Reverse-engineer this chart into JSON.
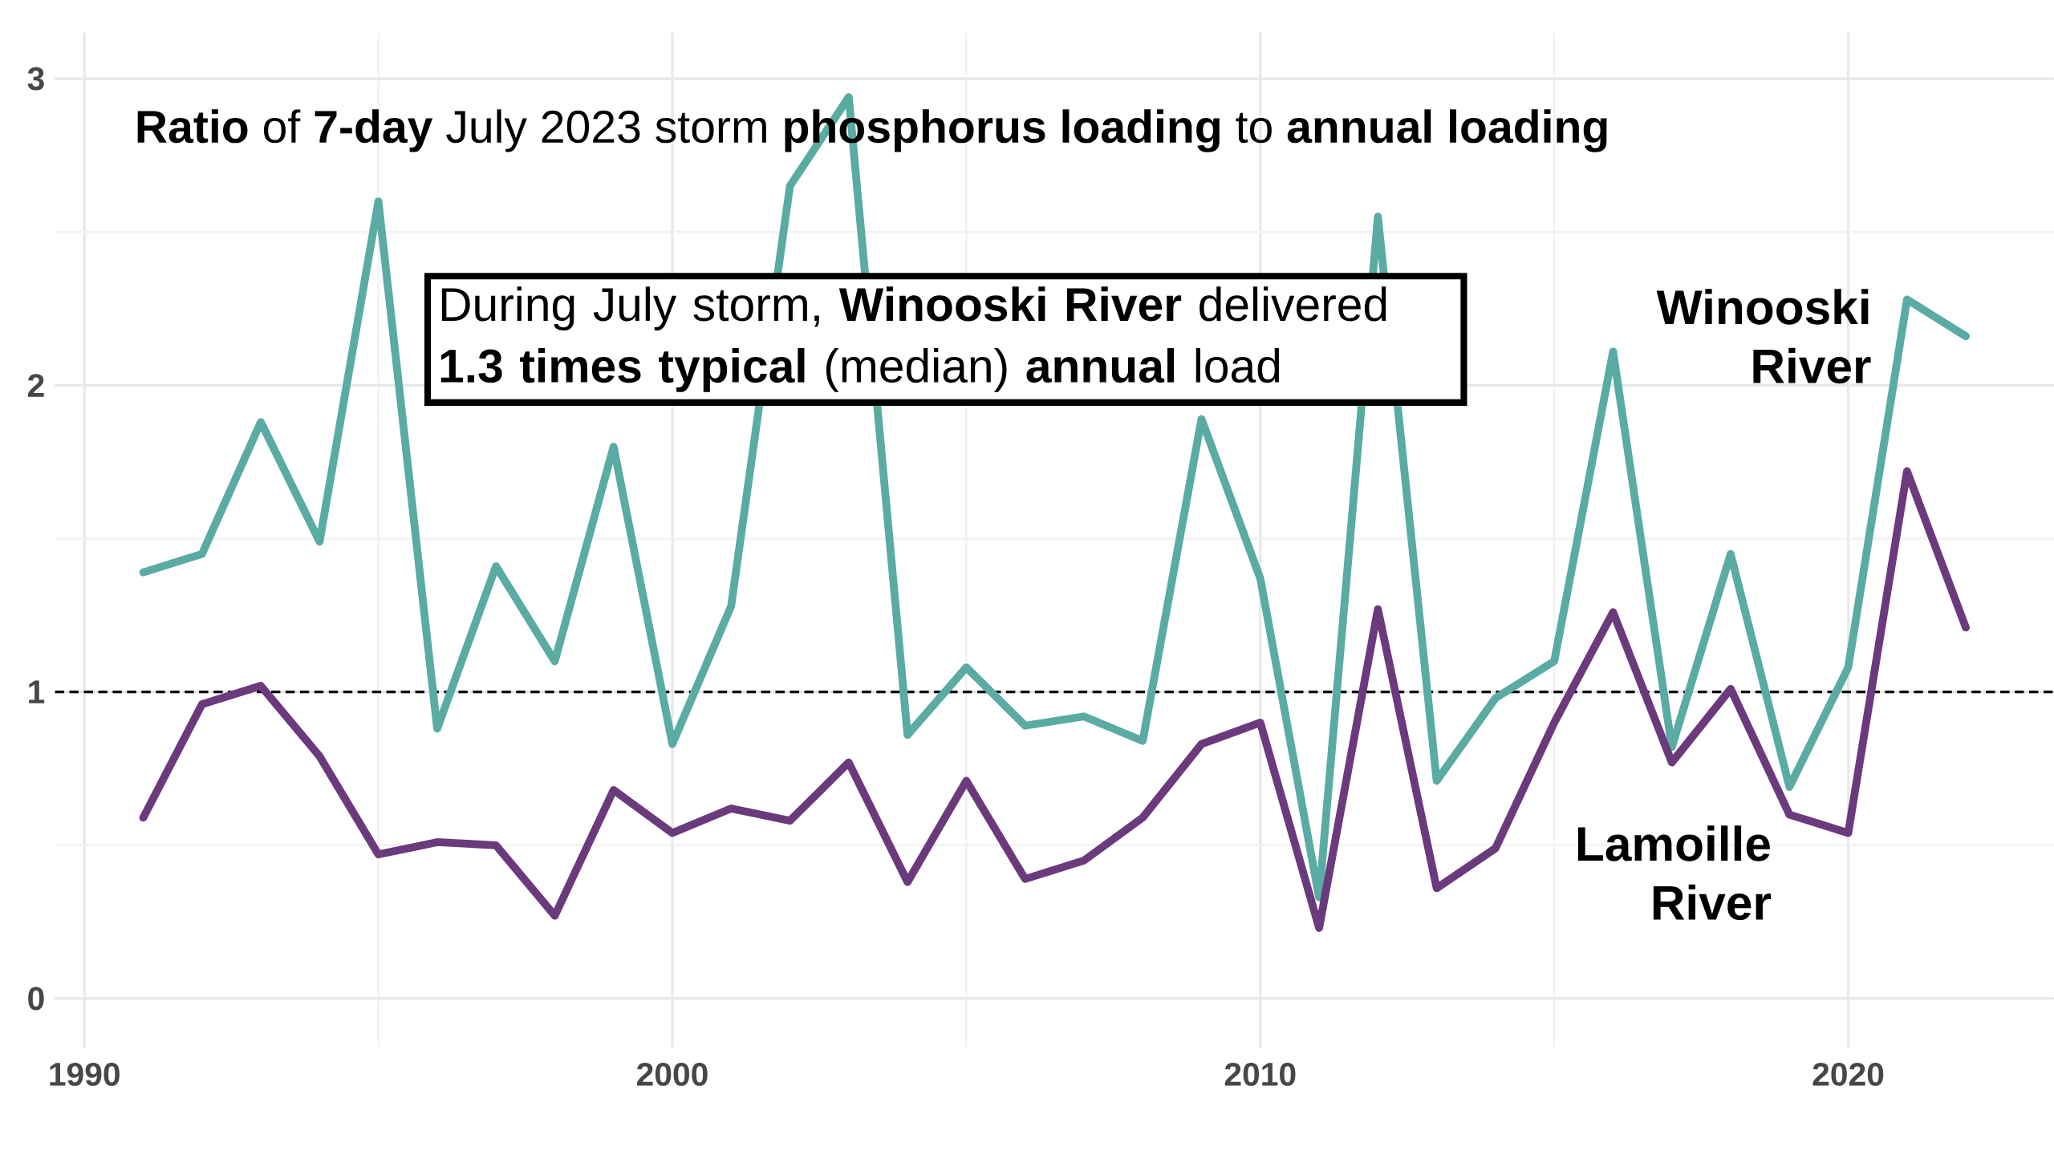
{
  "chart_data": {
    "type": "line",
    "title": "**Ratio** of **7-day** July 2023 storm **phosphorus loading** to **annual loading**",
    "x": [
      1991,
      1992,
      1993,
      1994,
      1995,
      1996,
      1997,
      1998,
      1999,
      2000,
      2001,
      2002,
      2003,
      2004,
      2005,
      2006,
      2007,
      2008,
      2009,
      2010,
      2011,
      2012,
      2013,
      2014,
      2015,
      2016,
      2017,
      2018,
      2019,
      2020,
      2021,
      2022
    ],
    "series": [
      {
        "name": "Winooski River",
        "color": "#5aaba3",
        "values": [
          1.39,
          1.45,
          1.88,
          1.49,
          2.6,
          0.88,
          1.41,
          1.1,
          1.8,
          0.83,
          1.28,
          2.65,
          2.94,
          0.86,
          1.08,
          0.89,
          0.92,
          0.84,
          1.89,
          1.37,
          0.33,
          2.55,
          0.71,
          0.98,
          1.1,
          2.11,
          0.82,
          1.45,
          0.69,
          1.08,
          2.28,
          2.16
        ]
      },
      {
        "name": "Lamoille River",
        "color": "#6b3a7d",
        "values": [
          0.59,
          0.96,
          1.02,
          0.79,
          0.47,
          0.51,
          0.5,
          0.27,
          0.68,
          0.54,
          0.62,
          0.58,
          0.77,
          0.38,
          0.71,
          0.39,
          0.45,
          0.59,
          0.83,
          0.9,
          0.23,
          1.27,
          0.36,
          0.49,
          0.9,
          1.26,
          0.77,
          1.01,
          0.6,
          0.54,
          1.72,
          1.21
        ]
      }
    ],
    "xlim": [
      1989.5,
      2023.5
    ],
    "ylim": [
      -0.16,
      3.15
    ],
    "xticks": [
      1990,
      2000,
      2010,
      2020
    ],
    "yticks": [
      0,
      1,
      2,
      3
    ],
    "grid": true,
    "line_style": "solid",
    "ref_lines": [
      {
        "axis": "y",
        "value": 1,
        "line_style": "dashed",
        "color": "#000000"
      }
    ],
    "annotations": [
      "During July storm, **Winooski River** delivered **1.3 times typical** (median) **annual** load"
    ]
  }
}
